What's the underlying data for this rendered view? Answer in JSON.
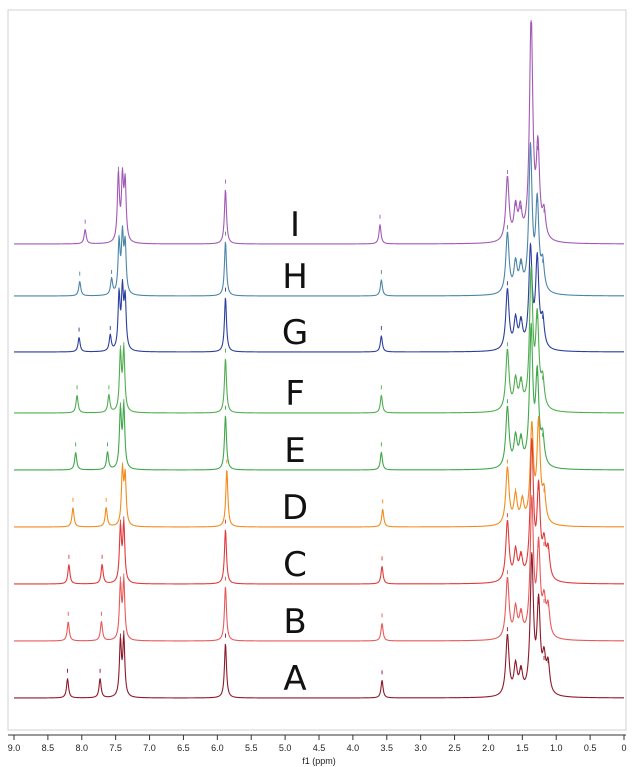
{
  "chart_data": {
    "type": "line",
    "xlabel": "f1 (ppm)",
    "xlim": [
      9.0,
      0.0
    ],
    "x_reversed": true,
    "x_ticks": [
      "9.0",
      "8.5",
      "8.0",
      "7.5",
      "7.0",
      "6.5",
      "6.0",
      "5.5",
      "5.0",
      "4.5",
      "4.0",
      "3.5",
      "3.0",
      "2.5",
      "2.0",
      "1.5",
      "1.0",
      "0.5",
      "0"
    ],
    "grid": false,
    "series": [
      {
        "name": "I",
        "color": "#a259b5",
        "peaks": [
          {
            "ppm": 7.95,
            "h": 0.09
          },
          {
            "ppm": 7.46,
            "h": 0.42
          },
          {
            "ppm": 7.4,
            "h": 0.38
          },
          {
            "ppm": 7.36,
            "h": 0.36
          },
          {
            "ppm": 5.88,
            "h": 0.34
          },
          {
            "ppm": 3.6,
            "h": 0.12
          },
          {
            "ppm": 1.72,
            "h": 0.4
          },
          {
            "ppm": 1.6,
            "h": 0.2
          },
          {
            "ppm": 1.53,
            "h": 0.18
          },
          {
            "ppm": 1.37,
            "h": 1.4
          },
          {
            "ppm": 1.27,
            "h": 0.55
          },
          {
            "ppm": 1.18,
            "h": 0.16
          }
        ]
      },
      {
        "name": "H",
        "color": "#4a86a8",
        "peaks": [
          {
            "ppm": 8.03,
            "h": 0.09
          },
          {
            "ppm": 7.56,
            "h": 0.1
          },
          {
            "ppm": 7.45,
            "h": 0.32
          },
          {
            "ppm": 7.4,
            "h": 0.35
          },
          {
            "ppm": 7.36,
            "h": 0.3
          },
          {
            "ppm": 5.88,
            "h": 0.34
          },
          {
            "ppm": 3.58,
            "h": 0.1
          },
          {
            "ppm": 1.72,
            "h": 0.38
          },
          {
            "ppm": 1.6,
            "h": 0.18
          },
          {
            "ppm": 1.52,
            "h": 0.16
          },
          {
            "ppm": 1.38,
            "h": 0.9
          },
          {
            "ppm": 1.28,
            "h": 0.55
          },
          {
            "ppm": 1.2,
            "h": 0.17
          }
        ]
      },
      {
        "name": "G",
        "color": "#2b3f9e",
        "peaks": [
          {
            "ppm": 8.04,
            "h": 0.09
          },
          {
            "ppm": 7.58,
            "h": 0.1
          },
          {
            "ppm": 7.45,
            "h": 0.34
          },
          {
            "ppm": 7.4,
            "h": 0.36
          },
          {
            "ppm": 7.36,
            "h": 0.31
          },
          {
            "ppm": 5.88,
            "h": 0.34
          },
          {
            "ppm": 3.58,
            "h": 0.1
          },
          {
            "ppm": 1.72,
            "h": 0.38
          },
          {
            "ppm": 1.6,
            "h": 0.18
          },
          {
            "ppm": 1.52,
            "h": 0.16
          },
          {
            "ppm": 1.38,
            "h": 0.62
          },
          {
            "ppm": 1.28,
            "h": 0.55
          },
          {
            "ppm": 1.2,
            "h": 0.17
          }
        ]
      },
      {
        "name": "F",
        "color": "#4fae4f",
        "peaks": [
          {
            "ppm": 8.07,
            "h": 0.11
          },
          {
            "ppm": 7.6,
            "h": 0.11
          },
          {
            "ppm": 7.43,
            "h": 0.36
          },
          {
            "ppm": 7.38,
            "h": 0.38
          },
          {
            "ppm": 5.88,
            "h": 0.34
          },
          {
            "ppm": 3.58,
            "h": 0.11
          },
          {
            "ppm": 1.72,
            "h": 0.38
          },
          {
            "ppm": 1.6,
            "h": 0.18
          },
          {
            "ppm": 1.52,
            "h": 0.16
          },
          {
            "ppm": 1.37,
            "h": 0.85
          },
          {
            "ppm": 1.28,
            "h": 0.55
          },
          {
            "ppm": 1.2,
            "h": 0.17
          }
        ]
      },
      {
        "name": "E",
        "color": "#3fa84a",
        "peaks": [
          {
            "ppm": 8.09,
            "h": 0.11
          },
          {
            "ppm": 7.62,
            "h": 0.11
          },
          {
            "ppm": 7.43,
            "h": 0.36
          },
          {
            "ppm": 7.38,
            "h": 0.38
          },
          {
            "ppm": 5.88,
            "h": 0.34
          },
          {
            "ppm": 3.58,
            "h": 0.11
          },
          {
            "ppm": 1.72,
            "h": 0.38
          },
          {
            "ppm": 1.6,
            "h": 0.18
          },
          {
            "ppm": 1.52,
            "h": 0.16
          },
          {
            "ppm": 1.37,
            "h": 0.85
          },
          {
            "ppm": 1.28,
            "h": 0.55
          },
          {
            "ppm": 1.2,
            "h": 0.17
          }
        ]
      },
      {
        "name": "D",
        "color": "#f28c1c",
        "peaks": [
          {
            "ppm": 8.13,
            "h": 0.12
          },
          {
            "ppm": 7.64,
            "h": 0.12
          },
          {
            "ppm": 7.4,
            "h": 0.34
          },
          {
            "ppm": 7.36,
            "h": 0.3
          },
          {
            "ppm": 5.86,
            "h": 0.36
          },
          {
            "ppm": 3.56,
            "h": 0.11
          },
          {
            "ppm": 1.72,
            "h": 0.36
          },
          {
            "ppm": 1.6,
            "h": 0.18
          },
          {
            "ppm": 1.5,
            "h": 0.14
          },
          {
            "ppm": 1.36,
            "h": 0.6
          },
          {
            "ppm": 1.26,
            "h": 0.62
          },
          {
            "ppm": 1.18,
            "h": 0.18
          }
        ]
      },
      {
        "name": "C",
        "color": "#e23a3a",
        "peaks": [
          {
            "ppm": 8.19,
            "h": 0.12
          },
          {
            "ppm": 7.7,
            "h": 0.12
          },
          {
            "ppm": 7.43,
            "h": 0.34
          },
          {
            "ppm": 7.38,
            "h": 0.36
          },
          {
            "ppm": 5.88,
            "h": 0.34
          },
          {
            "ppm": 3.57,
            "h": 0.11
          },
          {
            "ppm": 1.72,
            "h": 0.38
          },
          {
            "ppm": 1.6,
            "h": 0.18
          },
          {
            "ppm": 1.52,
            "h": 0.14
          },
          {
            "ppm": 1.36,
            "h": 0.85
          },
          {
            "ppm": 1.26,
            "h": 0.55
          },
          {
            "ppm": 1.18,
            "h": 0.2
          },
          {
            "ppm": 1.12,
            "h": 0.18
          }
        ]
      },
      {
        "name": "B",
        "color": "#e85a5a",
        "peaks": [
          {
            "ppm": 8.2,
            "h": 0.12
          },
          {
            "ppm": 7.71,
            "h": 0.12
          },
          {
            "ppm": 7.43,
            "h": 0.34
          },
          {
            "ppm": 7.38,
            "h": 0.36
          },
          {
            "ppm": 5.88,
            "h": 0.34
          },
          {
            "ppm": 3.57,
            "h": 0.11
          },
          {
            "ppm": 1.72,
            "h": 0.38
          },
          {
            "ppm": 1.6,
            "h": 0.18
          },
          {
            "ppm": 1.52,
            "h": 0.14
          },
          {
            "ppm": 1.36,
            "h": 0.85
          },
          {
            "ppm": 1.26,
            "h": 0.55
          },
          {
            "ppm": 1.18,
            "h": 0.2
          },
          {
            "ppm": 1.12,
            "h": 0.18
          }
        ]
      },
      {
        "name": "A",
        "color": "#8b1a2a",
        "peaks": [
          {
            "ppm": 8.21,
            "h": 0.12
          },
          {
            "ppm": 7.73,
            "h": 0.12
          },
          {
            "ppm": 7.43,
            "h": 0.34
          },
          {
            "ppm": 7.38,
            "h": 0.36
          },
          {
            "ppm": 5.88,
            "h": 0.34
          },
          {
            "ppm": 3.57,
            "h": 0.11
          },
          {
            "ppm": 1.72,
            "h": 0.38
          },
          {
            "ppm": 1.6,
            "h": 0.18
          },
          {
            "ppm": 1.52,
            "h": 0.14
          },
          {
            "ppm": 1.36,
            "h": 0.85
          },
          {
            "ppm": 1.26,
            "h": 0.55
          },
          {
            "ppm": 1.18,
            "h": 0.2
          },
          {
            "ppm": 1.12,
            "h": 0.18
          }
        ]
      }
    ]
  }
}
